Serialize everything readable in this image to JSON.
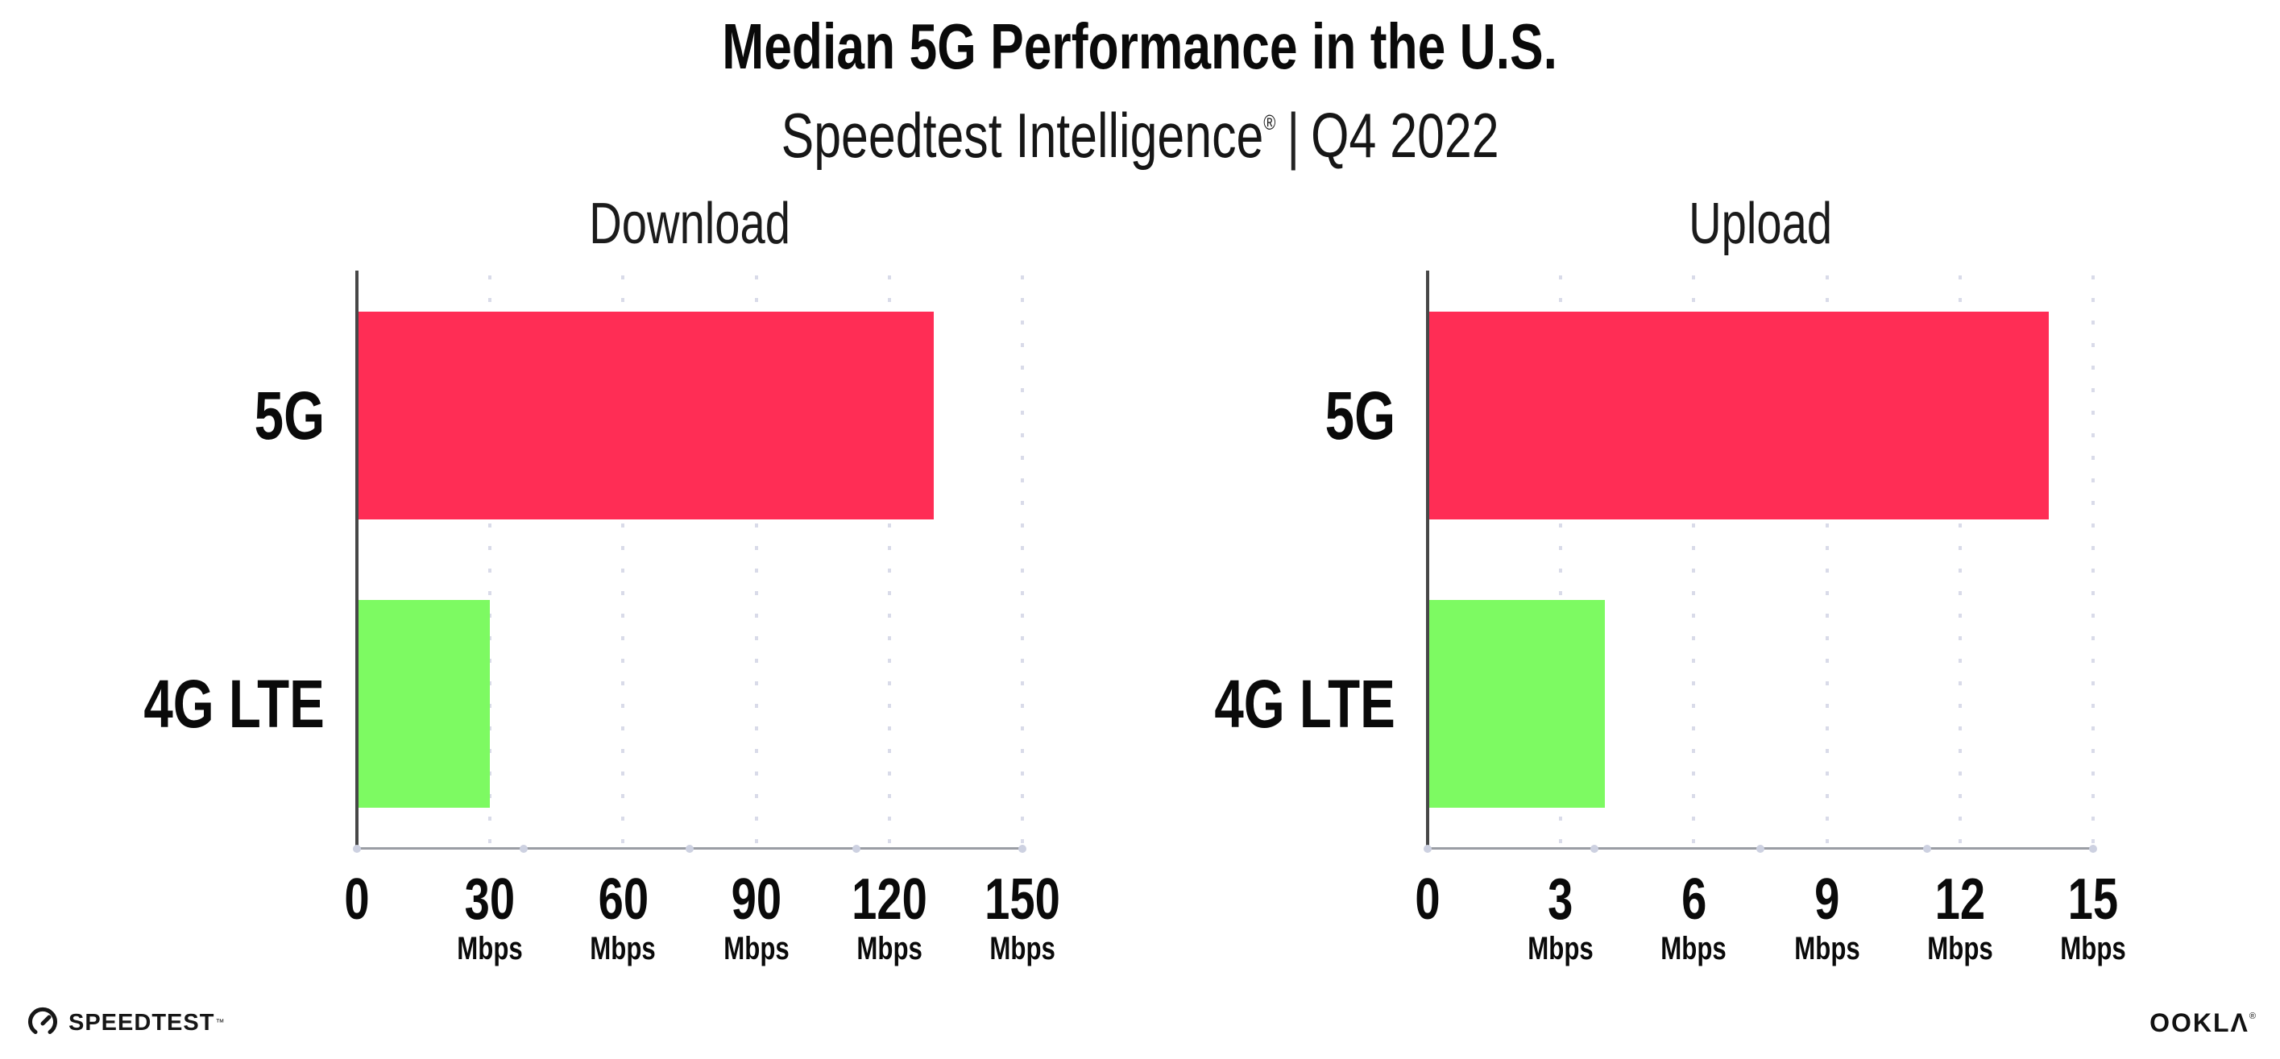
{
  "header": {
    "title": "Median 5G Performance in the U.S.",
    "subtitle_brand": "Speedtest Intelligence",
    "subtitle_reg": "®",
    "subtitle_separator": "|",
    "subtitle_period": "Q4 2022"
  },
  "colors": {
    "bar_5g": "#ff2d55",
    "bar_4g": "#7dfa62",
    "gridline": "#d9dbe9",
    "x_axis": "#9a9da4",
    "y_axis": "#474747",
    "text": "#0a0a0a"
  },
  "chart_data": [
    {
      "type": "bar",
      "orientation": "horizontal",
      "title": "Download",
      "categories": [
        "5G",
        "4G LTE"
      ],
      "values": [
        130,
        30
      ],
      "unit": "Mbps",
      "xlim": [
        0,
        150
      ],
      "xticks": [
        0,
        30,
        60,
        90,
        120,
        150
      ],
      "bar_colors": [
        "#ff2d55",
        "#7dfa62"
      ],
      "grid": "vertical-dotted",
      "legend": "none"
    },
    {
      "type": "bar",
      "orientation": "horizontal",
      "title": "Upload",
      "categories": [
        "5G",
        "4G LTE"
      ],
      "values": [
        14,
        4
      ],
      "unit": "Mbps",
      "xlim": [
        0,
        15
      ],
      "xticks": [
        0,
        3,
        6,
        9,
        12,
        15
      ],
      "bar_colors": [
        "#ff2d55",
        "#7dfa62"
      ],
      "grid": "vertical-dotted",
      "legend": "none"
    }
  ],
  "footer": {
    "speedtest_text": "SPEEDTEST",
    "speedtest_tm": "™",
    "ookla_text": "OOKLΛ",
    "ookla_reg": "®"
  }
}
